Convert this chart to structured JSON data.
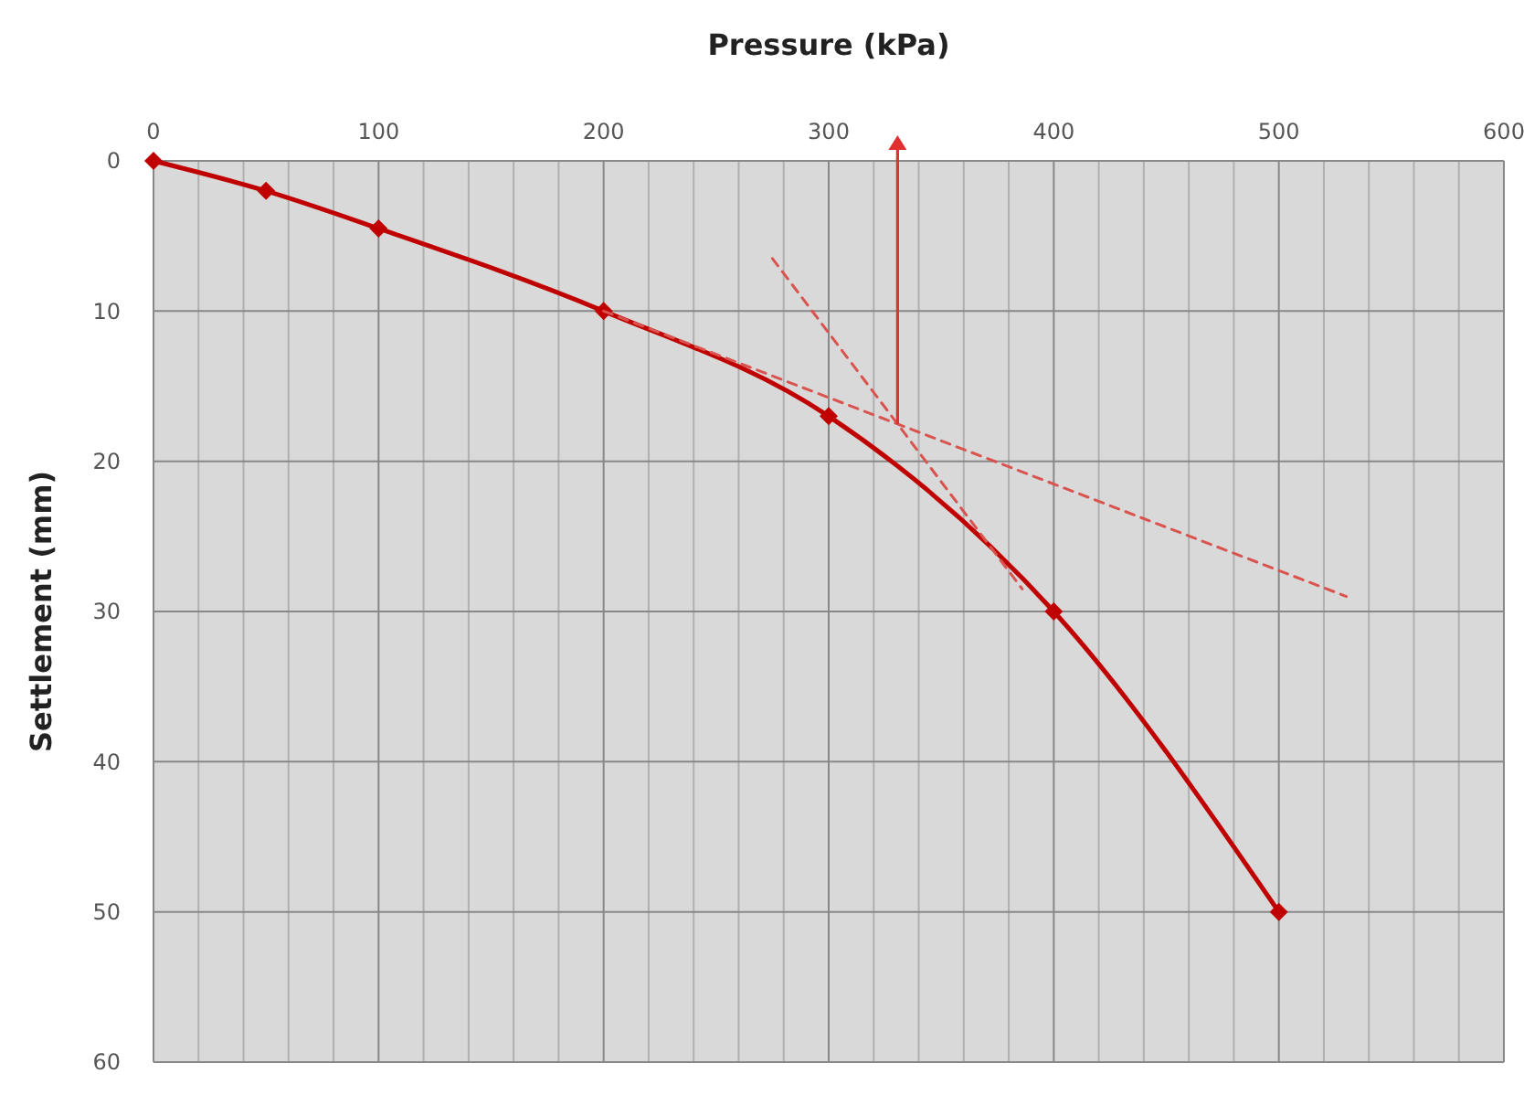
{
  "chart_data": {
    "type": "line",
    "xlabel": "Pressure (kPa)",
    "ylabel": "Settlement (mm)",
    "xlim": [
      0,
      600
    ],
    "ylim": [
      60,
      0
    ],
    "xticks": [
      0,
      {
        "value": 20,
        "label": null
      },
      {
        "value": 40,
        "label": null
      },
      {
        "value": 60,
        "label": null
      },
      {
        "value": 80,
        "label": null
      },
      100,
      {
        "value": 120,
        "label": null
      },
      {
        "value": 140,
        "label": null
      },
      {
        "value": 160,
        "label": null
      },
      {
        "value": 180,
        "label": null
      },
      200,
      {
        "value": 220,
        "label": null
      },
      {
        "value": 240,
        "label": null
      },
      {
        "value": 260,
        "label": null
      },
      {
        "value": 280,
        "label": null
      },
      300,
      {
        "value": 320,
        "label": null
      },
      {
        "value": 340,
        "label": null
      },
      {
        "value": 360,
        "label": null
      },
      {
        "value": 380,
        "label": null
      },
      400,
      {
        "value": 420,
        "label": null
      },
      {
        "value": 440,
        "label": null
      },
      {
        "value": 460,
        "label": null
      },
      {
        "value": 480,
        "label": null
      },
      500,
      {
        "value": 520,
        "label": null
      },
      {
        "value": 540,
        "label": null
      },
      {
        "value": 560,
        "label": null
      },
      {
        "value": 580,
        "label": null
      },
      600
    ],
    "yticks": [
      0,
      10,
      20,
      30,
      40,
      50,
      60
    ],
    "grid": true,
    "series": [
      {
        "color": "#c00000",
        "x": [
          0,
          50,
          100,
          200,
          300,
          400,
          500
        ],
        "values": [
          0,
          2,
          4.5,
          10,
          17,
          30,
          50
        ],
        "marker": "diamond",
        "line_style": "solid"
      },
      {
        "color": "#d9534f",
        "x": [
          275,
          386
        ],
        "values": [
          6.5,
          28.5
        ],
        "marker": "none",
        "line_style": "dashed"
      },
      {
        "color": "#d9534f",
        "x": [
          200,
          530
        ],
        "values": [
          10,
          29
        ],
        "marker": "none",
        "line_style": "dashed"
      }
    ]
  }
}
